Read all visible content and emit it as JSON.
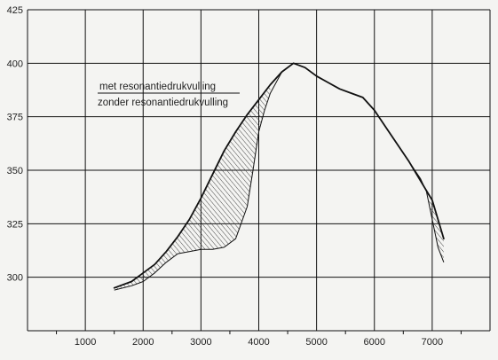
{
  "chart_data": {
    "type": "line",
    "title": "",
    "xlabel": "",
    "ylabel": "",
    "xlim": [
      0,
      8000
    ],
    "ylim": [
      275,
      425
    ],
    "grid": true,
    "x_ticks": [
      1000,
      2000,
      3000,
      4000,
      5000,
      6000,
      7000
    ],
    "y_ticks": [
      300,
      325,
      350,
      375,
      400,
      425
    ],
    "legend_position": "top-left",
    "series": [
      {
        "name": "met resonantiedrukvulling",
        "x": [
          1500,
          1800,
          2000,
          2200,
          2400,
          2600,
          2800,
          3000,
          3200,
          3400,
          3600,
          3800,
          4000,
          4200,
          4400,
          4600,
          4800,
          5000,
          5200,
          5400,
          5600,
          5800,
          6000,
          6200,
          6400,
          6600,
          6800,
          7000,
          7200
        ],
        "y": [
          295,
          298,
          302,
          306,
          312,
          319,
          327,
          337,
          348,
          359,
          368,
          376,
          383,
          390,
          396,
          400,
          398,
          394,
          391,
          388,
          386,
          384,
          378,
          370,
          362,
          354,
          345,
          336,
          318
        ]
      },
      {
        "name": "zonder resonantiedrukvulling",
        "x": [
          1500,
          1800,
          2000,
          2200,
          2400,
          2600,
          2800,
          3000,
          3200,
          3400,
          3600,
          3800,
          3900,
          4000,
          4100,
          4200,
          4400,
          4600,
          4800,
          5000,
          5200,
          5400,
          5600,
          5800,
          6000,
          6200,
          6400,
          6600,
          6800,
          6900,
          7000,
          7100,
          7200
        ],
        "y": [
          294,
          296,
          298,
          302,
          307,
          311,
          312,
          313,
          313,
          314,
          318,
          333,
          350,
          368,
          378,
          386,
          396,
          400,
          398,
          394,
          391,
          388,
          386,
          384,
          378,
          370,
          362,
          354,
          346,
          340,
          327,
          314,
          307
        ]
      }
    ]
  }
}
